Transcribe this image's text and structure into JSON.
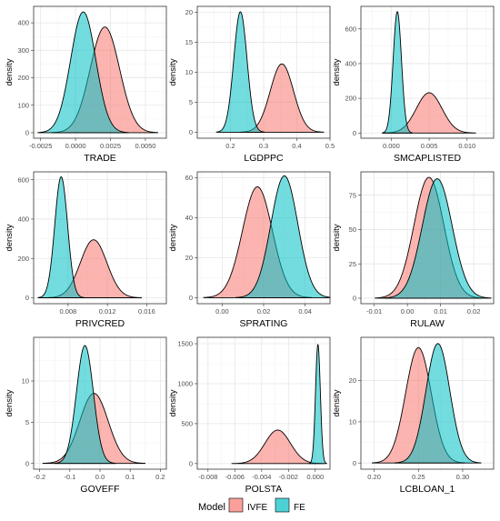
{
  "legend": {
    "title": "Model",
    "items": [
      {
        "label": "IVFE",
        "color": "#F8766D"
      },
      {
        "label": "FE",
        "color": "#00BFC4"
      }
    ]
  },
  "ylabel": "density",
  "chart_data": [
    {
      "type": "area",
      "title": "",
      "xlabel": "TRADE",
      "ylabel": "density",
      "xlim": [
        -0.003,
        0.0065
      ],
      "ylim": [
        -20,
        460
      ],
      "xticks": [
        {
          "v": -0.0025,
          "t": "-0.0025"
        },
        {
          "v": 0.0,
          "t": "0.0000"
        },
        {
          "v": 0.0025,
          "t": "0.0025"
        },
        {
          "v": 0.005,
          "t": "0.0050"
        }
      ],
      "yticks": [
        {
          "v": 0,
          "t": "0"
        },
        {
          "v": 100,
          "t": "100"
        },
        {
          "v": 200,
          "t": "200"
        },
        {
          "v": 300,
          "t": "300"
        },
        {
          "v": 400,
          "t": "400"
        }
      ],
      "series": [
        {
          "name": "IVFE",
          "mean": 0.0021,
          "sd": 0.00105,
          "peak": 385
        },
        {
          "name": "FE",
          "mean": 0.00055,
          "sd": 0.0009,
          "peak": 440
        }
      ]
    },
    {
      "type": "area",
      "title": "",
      "xlabel": "LGDPPC",
      "ylabel": "density",
      "xlim": [
        0.1,
        0.5
      ],
      "ylim": [
        -1,
        21
      ],
      "xticks": [
        {
          "v": 0.2,
          "t": "0.2"
        },
        {
          "v": 0.3,
          "t": "0.3"
        },
        {
          "v": 0.4,
          "t": "0.4"
        },
        {
          "v": 0.5,
          "t": "0.5"
        }
      ],
      "yticks": [
        {
          "v": 0,
          "t": "0"
        },
        {
          "v": 5,
          "t": "5"
        },
        {
          "v": 10,
          "t": "10"
        },
        {
          "v": 15,
          "t": "15"
        },
        {
          "v": 20,
          "t": "20"
        }
      ],
      "series": [
        {
          "name": "IVFE",
          "mean": 0.355,
          "sd": 0.035,
          "peak": 11.4
        },
        {
          "name": "FE",
          "mean": 0.23,
          "sd": 0.02,
          "peak": 20.1
        }
      ]
    },
    {
      "type": "area",
      "title": "",
      "xlabel": "SMCAPLISTED",
      "ylabel": "density",
      "xlim": [
        -0.004,
        0.0135
      ],
      "ylim": [
        -30,
        730
      ],
      "xticks": [
        {
          "v": 0.0,
          "t": "0.000"
        },
        {
          "v": 0.005,
          "t": "0.005"
        },
        {
          "v": 0.01,
          "t": "0.010"
        }
      ],
      "yticks": [
        {
          "v": 0,
          "t": "0"
        },
        {
          "v": 200,
          "t": "200"
        },
        {
          "v": 400,
          "t": "400"
        },
        {
          "v": 600,
          "t": "600"
        }
      ],
      "series": [
        {
          "name": "IVFE",
          "mean": 0.005,
          "sd": 0.0017,
          "peak": 232
        },
        {
          "name": "FE",
          "mean": 0.0008,
          "sd": 0.00055,
          "peak": 700
        }
      ]
    },
    {
      "type": "area",
      "title": "",
      "xlabel": "PRIVCRED",
      "ylabel": "density",
      "xlim": [
        0.0045,
        0.018
      ],
      "ylim": [
        -30,
        640
      ],
      "xticks": [
        {
          "v": 0.008,
          "t": "0.008"
        },
        {
          "v": 0.012,
          "t": "0.012"
        },
        {
          "v": 0.016,
          "t": "0.016"
        }
      ],
      "yticks": [
        {
          "v": 0,
          "t": "0"
        },
        {
          "v": 200,
          "t": "200"
        },
        {
          "v": 400,
          "t": "400"
        },
        {
          "v": 600,
          "t": "600"
        }
      ],
      "series": [
        {
          "name": "IVFE",
          "mean": 0.0106,
          "sd": 0.00135,
          "peak": 295
        },
        {
          "name": "FE",
          "mean": 0.0073,
          "sd": 0.00065,
          "peak": 615
        }
      ]
    },
    {
      "type": "area",
      "title": "",
      "xlabel": "SPRATING",
      "ylabel": "density",
      "xlim": [
        -0.012,
        0.052
      ],
      "ylim": [
        -3,
        63
      ],
      "xticks": [
        {
          "v": 0.0,
          "t": "0.00"
        },
        {
          "v": 0.02,
          "t": "0.02"
        },
        {
          "v": 0.04,
          "t": "0.04"
        }
      ],
      "yticks": [
        {
          "v": 0,
          "t": "0"
        },
        {
          "v": 20,
          "t": "20"
        },
        {
          "v": 40,
          "t": "40"
        },
        {
          "v": 60,
          "t": "60"
        }
      ],
      "series": [
        {
          "name": "IVFE",
          "mean": 0.017,
          "sd": 0.0072,
          "peak": 55.5
        },
        {
          "name": "FE",
          "mean": 0.03,
          "sd": 0.0065,
          "peak": 61
        }
      ]
    },
    {
      "type": "area",
      "title": "",
      "xlabel": "RULAW",
      "ylabel": "density",
      "xlim": [
        -0.014,
        0.026
      ],
      "ylim": [
        -4,
        92
      ],
      "xticks": [
        {
          "v": -0.01,
          "t": "-0.01"
        },
        {
          "v": 0.0,
          "t": "0.00"
        },
        {
          "v": 0.01,
          "t": "0.01"
        },
        {
          "v": 0.02,
          "t": "0.02"
        }
      ],
      "yticks": [
        {
          "v": 0,
          "t": "0"
        },
        {
          "v": 25,
          "t": "25"
        },
        {
          "v": 50,
          "t": "50"
        },
        {
          "v": 75,
          "t": "75"
        }
      ],
      "series": [
        {
          "name": "IVFE",
          "mean": 0.0065,
          "sd": 0.0045,
          "peak": 88
        },
        {
          "name": "FE",
          "mean": 0.009,
          "sd": 0.0045,
          "peak": 87
        }
      ]
    },
    {
      "type": "area",
      "title": "",
      "xlabel": "GOVEFF",
      "ylabel": "density",
      "xlim": [
        -0.22,
        0.22
      ],
      "ylim": [
        -0.7,
        15.3
      ],
      "xticks": [
        {
          "v": -0.2,
          "t": "-0.2"
        },
        {
          "v": -0.1,
          "t": "-0.1"
        },
        {
          "v": 0.0,
          "t": "0.0"
        },
        {
          "v": 0.1,
          "t": "0.1"
        },
        {
          "v": 0.2,
          "t": "0.2"
        }
      ],
      "yticks": [
        {
          "v": 0,
          "t": "0"
        },
        {
          "v": 5,
          "t": "5"
        },
        {
          "v": 10,
          "t": "10"
        }
      ],
      "series": [
        {
          "name": "IVFE",
          "mean": -0.02,
          "sd": 0.047,
          "peak": 8.5
        },
        {
          "name": "FE",
          "mean": -0.05,
          "sd": 0.028,
          "peak": 14.3
        }
      ]
    },
    {
      "type": "area",
      "title": "",
      "xlabel": "POLSTA",
      "ylabel": "density",
      "xlim": [
        -0.0088,
        0.0011
      ],
      "ylim": [
        -70,
        1580
      ],
      "xticks": [
        {
          "v": -0.008,
          "t": "-0.008"
        },
        {
          "v": -0.006,
          "t": "-0.006"
        },
        {
          "v": -0.004,
          "t": "-0.004"
        },
        {
          "v": -0.002,
          "t": "-0.002"
        },
        {
          "v": 0.0,
          "t": "0.000"
        }
      ],
      "yticks": [
        {
          "v": 0,
          "t": "0"
        },
        {
          "v": 500,
          "t": "500"
        },
        {
          "v": 1000,
          "t": "1000"
        },
        {
          "v": 1500,
          "t": "1500"
        }
      ],
      "series": [
        {
          "name": "IVFE",
          "mean": -0.0028,
          "sd": 0.00095,
          "peak": 420
        },
        {
          "name": "FE",
          "mean": 0.0002,
          "sd": 0.00018,
          "peak": 1490
        }
      ]
    },
    {
      "type": "area",
      "title": "",
      "xlabel": "LCBLOAN_1",
      "ylabel": "density",
      "xlim": [
        0.185,
        0.335
      ],
      "ylim": [
        -1.5,
        30.5
      ],
      "xticks": [
        {
          "v": 0.2,
          "t": "0.20"
        },
        {
          "v": 0.25,
          "t": "0.25"
        },
        {
          "v": 0.3,
          "t": "0.30"
        }
      ],
      "yticks": [
        {
          "v": 0,
          "t": "0"
        },
        {
          "v": 10,
          "t": "10"
        },
        {
          "v": 20,
          "t": "20"
        }
      ],
      "series": [
        {
          "name": "IVFE",
          "mean": 0.25,
          "sd": 0.0145,
          "peak": 28
        },
        {
          "name": "FE",
          "mean": 0.272,
          "sd": 0.0135,
          "peak": 29
        }
      ]
    }
  ]
}
